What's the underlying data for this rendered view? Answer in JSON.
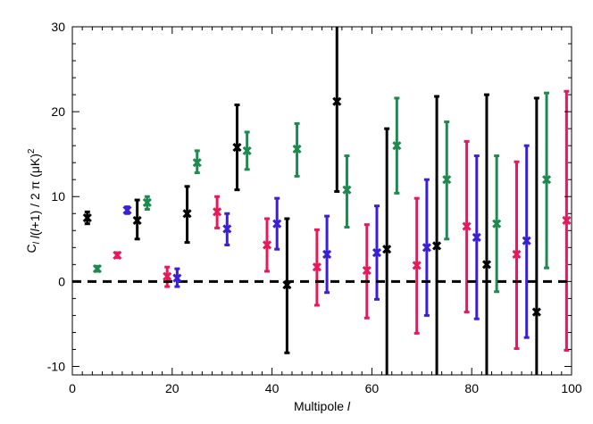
{
  "chart_data": {
    "type": "scatter",
    "title": "",
    "xlabel": "Multipole l",
    "ylabel": "C_l l(l+1) / 2π (μK)²",
    "xlim": [
      0,
      100
    ],
    "ylim": [
      -11,
      30
    ],
    "x_ticks": [
      0,
      20,
      40,
      60,
      80,
      100
    ],
    "y_ticks": [
      -10,
      0,
      10,
      20,
      30
    ],
    "x_tick_labels": [
      "0",
      "20",
      "40",
      "60",
      "80",
      "100"
    ],
    "y_tick_labels": [
      "-10",
      "0",
      "10",
      "20",
      "30"
    ],
    "grid": false,
    "reference_line": {
      "y": 0,
      "style": "dashed",
      "color": "#000000"
    },
    "series": [
      {
        "color": "#000000",
        "points": [
          {
            "x": 3,
            "y": 7.5,
            "lo": 6.8,
            "hi": 8.2
          },
          {
            "x": 13,
            "y": 7.2,
            "lo": 5.0,
            "hi": 9.6
          },
          {
            "x": 23,
            "y": 8.0,
            "lo": 4.6,
            "hi": 11.2
          },
          {
            "x": 33,
            "y": 15.8,
            "lo": 10.8,
            "hi": 20.8
          },
          {
            "x": 43,
            "y": -0.4,
            "lo": -8.4,
            "hi": 7.4
          },
          {
            "x": 53,
            "y": 21.2,
            "lo": 10.6,
            "hi": 30.0
          },
          {
            "x": 63,
            "y": 3.8,
            "lo": -11.0,
            "hi": 18.0
          },
          {
            "x": 73,
            "y": 4.2,
            "lo": -11.0,
            "hi": 21.8
          },
          {
            "x": 83,
            "y": 2.0,
            "lo": -11.0,
            "hi": 22.0
          },
          {
            "x": 93,
            "y": -3.6,
            "lo": -11.0,
            "hi": 21.6
          }
        ]
      },
      {
        "color": "#1e8a4f",
        "points": [
          {
            "x": 5,
            "y": 1.5,
            "lo": 1.2,
            "hi": 1.8
          },
          {
            "x": 15,
            "y": 9.3,
            "lo": 8.5,
            "hi": 10.0
          },
          {
            "x": 25,
            "y": 14.0,
            "lo": 12.8,
            "hi": 15.4
          },
          {
            "x": 35,
            "y": 15.4,
            "lo": 13.2,
            "hi": 17.6
          },
          {
            "x": 45,
            "y": 15.6,
            "lo": 12.4,
            "hi": 18.6
          },
          {
            "x": 55,
            "y": 10.8,
            "lo": 6.4,
            "hi": 14.8
          },
          {
            "x": 65,
            "y": 16.0,
            "lo": 10.4,
            "hi": 21.6
          },
          {
            "x": 75,
            "y": 12.0,
            "lo": 5.0,
            "hi": 18.8
          },
          {
            "x": 85,
            "y": 6.8,
            "lo": -1.2,
            "hi": 14.8
          },
          {
            "x": 95,
            "y": 12.0,
            "lo": 1.6,
            "hi": 22.2
          }
        ]
      },
      {
        "color": "#e8195a",
        "points": [
          {
            "x": 9,
            "y": 3.1,
            "lo": 2.8,
            "hi": 3.4
          },
          {
            "x": 19,
            "y": 0.6,
            "lo": -0.6,
            "hi": 1.7
          },
          {
            "x": 29,
            "y": 8.2,
            "lo": 6.3,
            "hi": 10.0
          },
          {
            "x": 39,
            "y": 4.3,
            "lo": 1.2,
            "hi": 7.4
          },
          {
            "x": 49,
            "y": 1.7,
            "lo": -2.8,
            "hi": 6.1
          },
          {
            "x": 59,
            "y": 1.3,
            "lo": -4.3,
            "hi": 6.7
          },
          {
            "x": 69,
            "y": 1.9,
            "lo": -6.1,
            "hi": 9.8
          },
          {
            "x": 79,
            "y": 6.5,
            "lo": -3.6,
            "hi": 16.5
          },
          {
            "x": 89,
            "y": 3.2,
            "lo": -7.9,
            "hi": 14.1
          },
          {
            "x": 99,
            "y": 7.2,
            "lo": -8.1,
            "hi": 22.4
          }
        ]
      },
      {
        "color": "#3a1fd8",
        "points": [
          {
            "x": 11,
            "y": 8.4,
            "lo": 8.0,
            "hi": 8.8
          },
          {
            "x": 21,
            "y": 0.4,
            "lo": -0.6,
            "hi": 1.5
          },
          {
            "x": 31,
            "y": 6.2,
            "lo": 4.3,
            "hi": 8.0
          },
          {
            "x": 41,
            "y": 6.8,
            "lo": 3.8,
            "hi": 9.8
          },
          {
            "x": 51,
            "y": 3.2,
            "lo": -1.3,
            "hi": 7.7
          },
          {
            "x": 61,
            "y": 3.4,
            "lo": -2.1,
            "hi": 8.9
          },
          {
            "x": 71,
            "y": 4.0,
            "lo": -4.0,
            "hi": 12.0
          },
          {
            "x": 81,
            "y": 5.2,
            "lo": -4.4,
            "hi": 14.8
          },
          {
            "x": 91,
            "y": 4.8,
            "lo": -6.6,
            "hi": 16.0
          }
        ]
      }
    ]
  }
}
